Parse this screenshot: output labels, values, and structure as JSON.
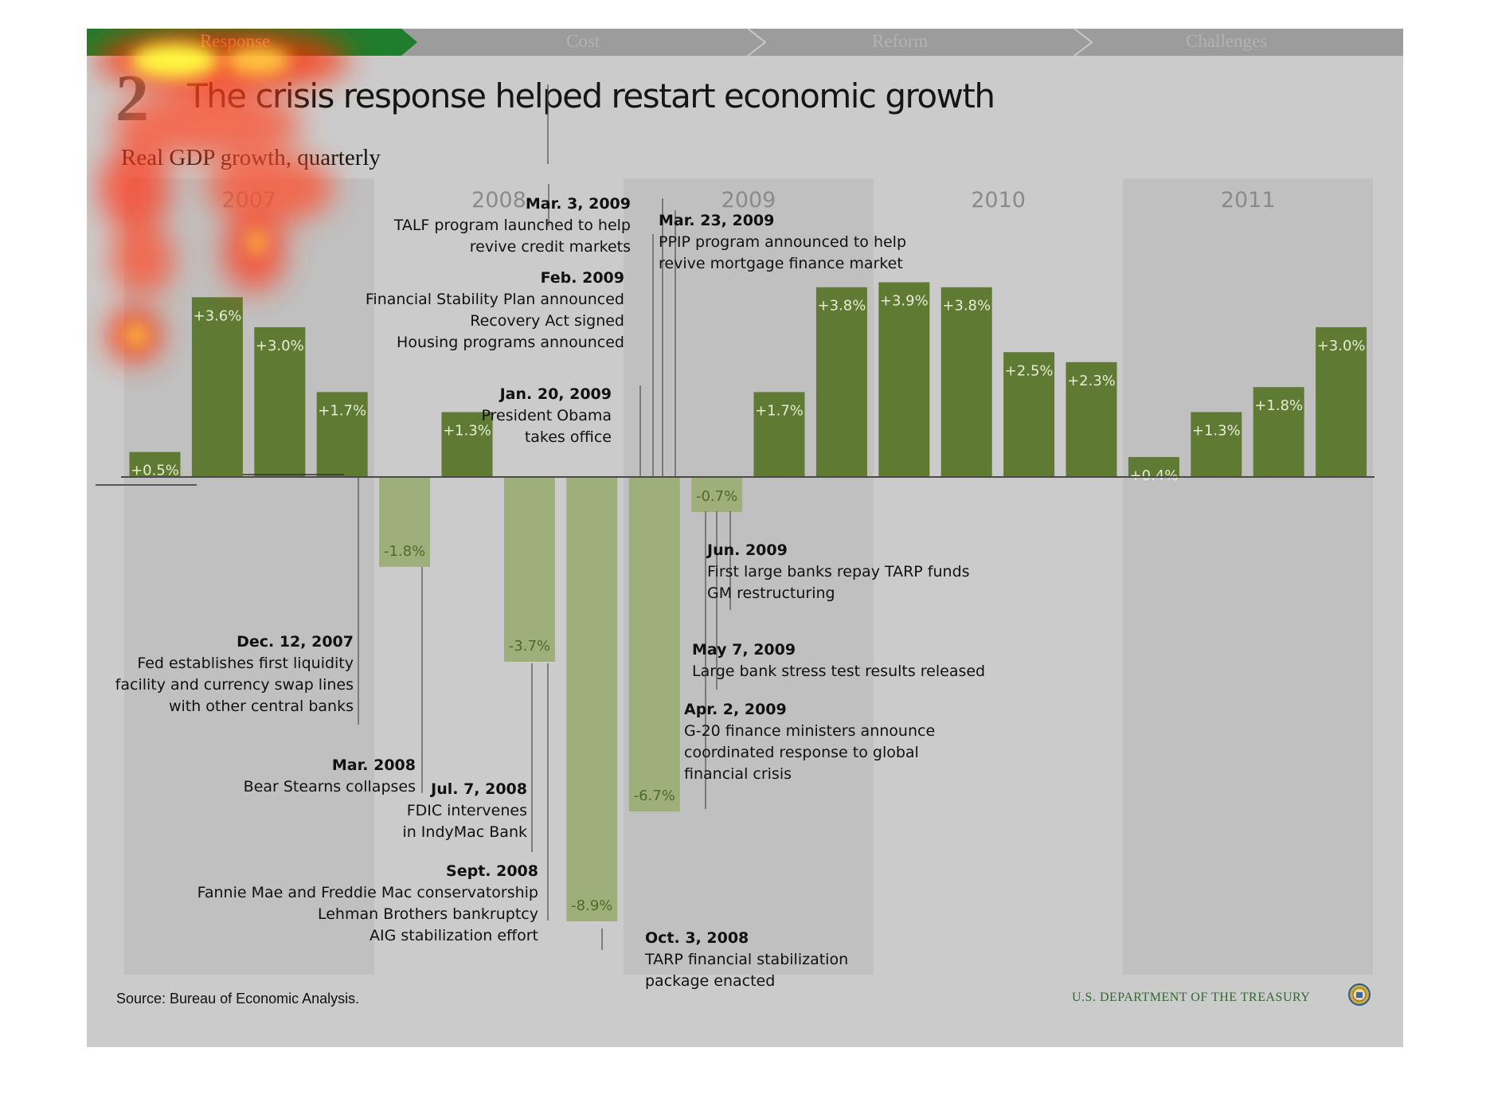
{
  "nav": {
    "items": [
      {
        "label": "Response",
        "active": true
      },
      {
        "label": "Cost",
        "active": false
      },
      {
        "label": "Reform",
        "active": false
      },
      {
        "label": "Challenges",
        "active": false
      }
    ]
  },
  "slide_number": "2",
  "headline": "The crisis response helped restart economic growth",
  "subtitle": "Real GDP growth, quarterly",
  "source": "Source: Bureau of Economic Analysis.",
  "agency": "U.S. DEPARTMENT OF THE TREASURY",
  "colors": {
    "panel": "#cbcbcb",
    "year_band": "#c0c0c0",
    "positive_bar": "#5f7a33",
    "negative_bar": "#9eaf7c",
    "active_nav": "#1f7d2b",
    "nav": "#9c9c9c"
  },
  "chart_data": {
    "type": "bar",
    "years": [
      "2007",
      "2008",
      "2009",
      "2010",
      "2011"
    ],
    "categories": [
      "2007 Q1",
      "2007 Q2",
      "2007 Q3",
      "2007 Q4",
      "2008 Q1",
      "2008 Q2",
      "2008 Q3",
      "2008 Q4",
      "2009 Q1",
      "2009 Q2",
      "2009 Q3",
      "2009 Q4",
      "2010 Q1",
      "2010 Q2",
      "2010 Q3",
      "2010 Q4",
      "2011 Q1",
      "2011 Q2",
      "2011 Q3",
      "2011 Q4"
    ],
    "values": [
      0.5,
      3.6,
      3.0,
      1.7,
      -1.8,
      1.3,
      -3.7,
      -8.9,
      -6.7,
      -0.7,
      1.7,
      3.8,
      3.9,
      3.8,
      2.5,
      2.3,
      0.4,
      1.3,
      1.8,
      3.0
    ],
    "value_labels": [
      "+0.5%",
      "+3.6%",
      "+3.0%",
      "+1.7%",
      "-1.8%",
      "+1.3%",
      "-3.7%",
      "-8.9%",
      "-6.7%",
      "-0.7%",
      "+1.7%",
      "+3.8%",
      "+3.9%",
      "+3.8%",
      "+2.5%",
      "+2.3%",
      "+0.4%",
      "+1.3%",
      "+1.8%",
      "+3.0%"
    ],
    "title": "Real GDP growth, quarterly",
    "xlabel": "",
    "ylabel": "",
    "ylim": [
      -10,
      6
    ],
    "grid": false,
    "annotations": [
      {
        "date": "Dec. 12, 2007",
        "lines": [
          "Fed establishes first liquidity",
          "facility and currency swap lines",
          "with other central banks"
        ]
      },
      {
        "date": "Mar. 2008",
        "lines": [
          "Bear Stearns collapses"
        ]
      },
      {
        "date": "Jul. 7, 2008",
        "lines": [
          "FDIC intervenes",
          "in IndyMac Bank"
        ]
      },
      {
        "date": "Sept. 2008",
        "lines": [
          "Fannie Mae and Freddie Mac conservatorship",
          "Lehman Brothers bankruptcy",
          "AIG stabilization effort"
        ]
      },
      {
        "date": "Oct. 3, 2008",
        "lines": [
          "TARP financial stabilization",
          "package enacted"
        ]
      },
      {
        "date": "Jan. 20, 2009",
        "lines": [
          "President Obama",
          "takes office"
        ]
      },
      {
        "date": "Feb. 2009",
        "lines": [
          "Financial Stability Plan announced",
          "Recovery Act signed",
          "Housing programs announced"
        ]
      },
      {
        "date": "Mar. 3, 2009",
        "lines": [
          "TALF program launched to help",
          "revive credit markets"
        ]
      },
      {
        "date": "Mar. 23, 2009",
        "lines": [
          "PPIP program announced to help",
          "revive mortgage finance market"
        ]
      },
      {
        "date": "Apr. 2, 2009",
        "lines": [
          "G-20 finance ministers announce",
          "coordinated response to global",
          "financial crisis"
        ]
      },
      {
        "date": "May 7, 2009",
        "lines": [
          "Large bank stress test results released"
        ]
      },
      {
        "date": "Jun. 2009",
        "lines": [
          "First large banks repay TARP funds",
          "GM restructuring"
        ]
      }
    ]
  }
}
